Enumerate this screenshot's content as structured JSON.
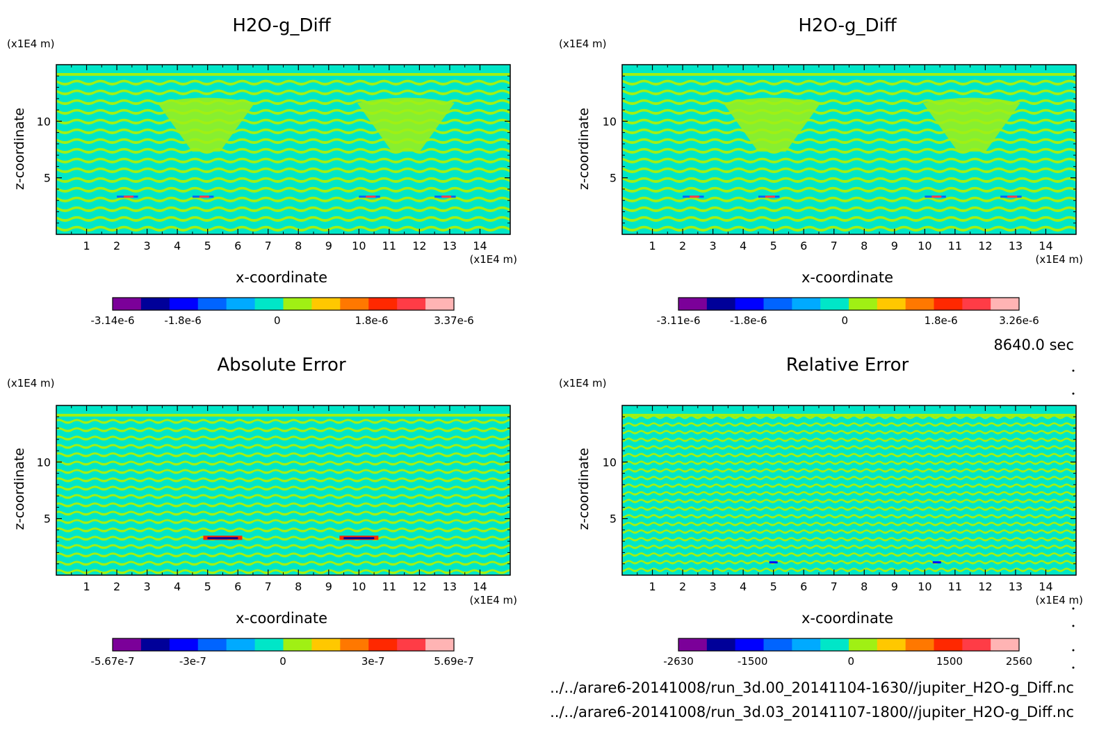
{
  "colormap": [
    "#7b0099",
    "#000099",
    "#0000ff",
    "#0064ff",
    "#00aaff",
    "#00e6c8",
    "#a0f014",
    "#ffc800",
    "#ff7800",
    "#ff2800",
    "#ff3c46",
    "#ffb4b4"
  ],
  "panels": [
    {
      "title": "H2O-g_Diff",
      "y_unit": "(x1E4 m)",
      "ylabel": "z-coordinate",
      "x_unit": "(x1E4 m)",
      "xlabel": "x-coordinate",
      "x_ticks": [
        "1",
        "2",
        "3",
        "4",
        "5",
        "6",
        "7",
        "8",
        "9",
        "10",
        "11",
        "12",
        "13",
        "14"
      ],
      "y_ticks": [
        "5",
        "10"
      ],
      "colorbar_labels": [
        "-3.14e-6",
        "-1.8e-6",
        "0",
        "1.8e-6",
        "3.37e-6"
      ]
    },
    {
      "title": "H2O-g_Diff",
      "y_unit": "(x1E4 m)",
      "ylabel": "z-coordinate",
      "x_unit": "(x1E4 m)",
      "xlabel": "x-coordinate",
      "x_ticks": [
        "1",
        "2",
        "3",
        "4",
        "5",
        "6",
        "7",
        "8",
        "9",
        "10",
        "11",
        "12",
        "13",
        "14"
      ],
      "y_ticks": [
        "5",
        "10"
      ],
      "colorbar_labels": [
        "-3.11e-6",
        "-1.8e-6",
        "0",
        "1.8e-6",
        "3.26e-6"
      ]
    },
    {
      "title": "Absolute Error",
      "y_unit": "(x1E4 m)",
      "ylabel": "z-coordinate",
      "x_unit": "(x1E4 m)",
      "xlabel": "x-coordinate",
      "x_ticks": [
        "1",
        "2",
        "3",
        "4",
        "5",
        "6",
        "7",
        "8",
        "9",
        "10",
        "11",
        "12",
        "13",
        "14"
      ],
      "y_ticks": [
        "5",
        "10"
      ],
      "colorbar_labels": [
        "-5.67e-7",
        "-3e-7",
        "0",
        "3e-7",
        "5.69e-7"
      ]
    },
    {
      "title": "Relative Error",
      "y_unit": "(x1E4 m)",
      "ylabel": "z-coordinate",
      "x_unit": "(x1E4 m)",
      "xlabel": "x-coordinate",
      "x_ticks": [
        "1",
        "2",
        "3",
        "4",
        "5",
        "6",
        "7",
        "8",
        "9",
        "10",
        "11",
        "12",
        "13",
        "14"
      ],
      "y_ticks": [
        "5",
        "10"
      ],
      "colorbar_labels": [
        "-2630",
        "-1500",
        "0",
        "1500",
        "2560"
      ]
    }
  ],
  "time_label": "8640.0 sec",
  "files": [
    "../../arare6-20141008/run_3d.00_20141104-1630//jupiter_H2O-g_Diff.nc",
    "../../arare6-20141008/run_3d.03_20141107-1800//jupiter_H2O-g_Diff.nc"
  ],
  "chart_data": [
    {
      "type": "heatmap",
      "title": "H2O-g_Diff",
      "xlabel": "x-coordinate",
      "ylabel": "z-coordinate",
      "x_unit": "(x1E4 m)",
      "y_unit": "(x1E4 m)",
      "xlim": [
        0,
        15
      ],
      "ylim": [
        0,
        15
      ],
      "x_ticks": [
        1,
        2,
        3,
        4,
        5,
        6,
        7,
        8,
        9,
        10,
        11,
        12,
        13,
        14
      ],
      "y_ticks": [
        5,
        10
      ],
      "colorbar": {
        "min": -3.14e-06,
        "max": 3.37e-06,
        "ticks": [
          -3.14e-06,
          -1.8e-06,
          0,
          1.8e-06,
          3.37e-06
        ]
      },
      "dominant_levels": [
        "0 to positive small (green)",
        "negative small (cyan)"
      ],
      "extremes_near_z": 3.3
    },
    {
      "type": "heatmap",
      "title": "H2O-g_Diff",
      "xlabel": "x-coordinate",
      "ylabel": "z-coordinate",
      "x_unit": "(x1E4 m)",
      "y_unit": "(x1E4 m)",
      "xlim": [
        0,
        15
      ],
      "ylim": [
        0,
        15
      ],
      "x_ticks": [
        1,
        2,
        3,
        4,
        5,
        6,
        7,
        8,
        9,
        10,
        11,
        12,
        13,
        14
      ],
      "y_ticks": [
        5,
        10
      ],
      "colorbar": {
        "min": -3.11e-06,
        "max": 3.26e-06,
        "ticks": [
          -3.11e-06,
          -1.8e-06,
          0,
          1.8e-06,
          3.26e-06
        ]
      },
      "dominant_levels": [
        "0 to positive small (green)",
        "negative small (cyan)"
      ],
      "extremes_near_z": 3.3
    },
    {
      "type": "heatmap",
      "title": "Absolute Error",
      "xlabel": "x-coordinate",
      "ylabel": "z-coordinate",
      "x_unit": "(x1E4 m)",
      "y_unit": "(x1E4 m)",
      "xlim": [
        0,
        15
      ],
      "ylim": [
        0,
        15
      ],
      "x_ticks": [
        1,
        2,
        3,
        4,
        5,
        6,
        7,
        8,
        9,
        10,
        11,
        12,
        13,
        14
      ],
      "y_ticks": [
        5,
        10
      ],
      "colorbar": {
        "min": -5.67e-07,
        "max": 5.69e-07,
        "ticks": [
          -5.67e-07,
          -3e-07,
          0,
          3e-07,
          5.69e-07
        ]
      },
      "dominant_levels": [
        "0 to positive small (green)",
        "negative small (cyan)"
      ],
      "extremes_near_x": [
        5.5,
        10.0
      ]
    },
    {
      "type": "heatmap",
      "title": "Relative Error",
      "xlabel": "x-coordinate",
      "ylabel": "z-coordinate",
      "x_unit": "(x1E4 m)",
      "y_unit": "(x1E4 m)",
      "xlim": [
        0,
        15
      ],
      "ylim": [
        0,
        15
      ],
      "x_ticks": [
        1,
        2,
        3,
        4,
        5,
        6,
        7,
        8,
        9,
        10,
        11,
        12,
        13,
        14
      ],
      "y_ticks": [
        5,
        10
      ],
      "colorbar": {
        "min": -2630,
        "max": 2560,
        "ticks": [
          -2630,
          -1500,
          0,
          1500,
          2560
        ]
      },
      "dominant_levels": [
        "0 to positive small (green)",
        "negative small (cyan)"
      ]
    }
  ]
}
